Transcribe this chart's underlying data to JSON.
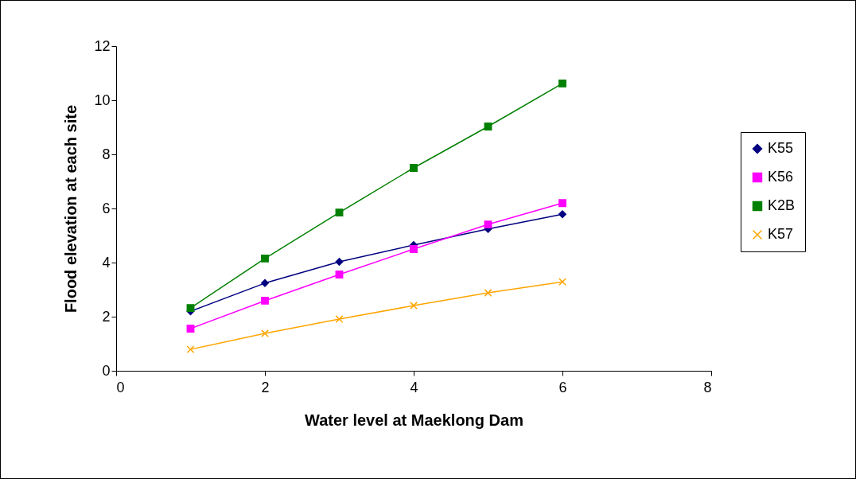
{
  "chart_data": {
    "type": "line",
    "xlabel": "Water level at Maeklong Dam",
    "ylabel": "Flood elevation at each site",
    "x": [
      1,
      2,
      3,
      4,
      5,
      6
    ],
    "series": [
      {
        "name": "K55",
        "color": "#000080",
        "marker": "diamond",
        "values": [
          2.2,
          3.24,
          4.03,
          4.65,
          5.24,
          5.79
        ]
      },
      {
        "name": "K56",
        "color": "#ff00ff",
        "marker": "square",
        "values": [
          1.56,
          2.59,
          3.56,
          4.5,
          5.41,
          6.2
        ]
      },
      {
        "name": "K2B",
        "color": "#008000",
        "marker": "square",
        "values": [
          2.32,
          4.15,
          5.85,
          7.5,
          9.03,
          10.62
        ]
      },
      {
        "name": "K57",
        "color": "#ffa500",
        "marker": "cross",
        "values": [
          0.79,
          1.38,
          1.91,
          2.41,
          2.88,
          3.29
        ]
      }
    ],
    "xlim": [
      0,
      8
    ],
    "xticks": [
      0,
      2,
      4,
      6,
      8
    ],
    "ylim": [
      0,
      12
    ],
    "yticks": [
      0,
      2,
      4,
      6,
      8,
      10,
      12
    ],
    "grid": false,
    "legend": "right",
    "line_style": "solid"
  }
}
